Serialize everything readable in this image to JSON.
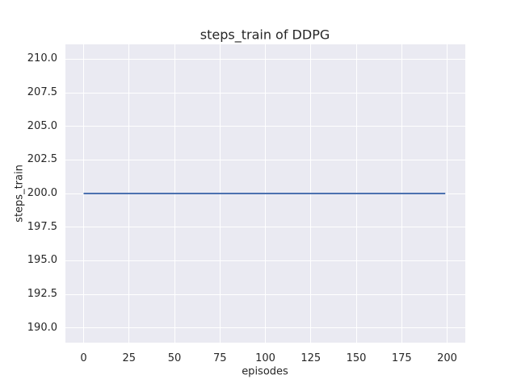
{
  "chart_data": {
    "type": "line",
    "title": "steps_train of DDPG",
    "xlabel": "episodes",
    "ylabel": "steps_train",
    "xlim": [
      -10,
      210
    ],
    "ylim": [
      188.9,
      211.1
    ],
    "x_ticks": [
      0,
      25,
      50,
      75,
      100,
      125,
      150,
      175,
      200
    ],
    "x_tick_labels": [
      "0",
      "25",
      "50",
      "75",
      "100",
      "125",
      "150",
      "175",
      "200"
    ],
    "y_ticks": [
      190.0,
      192.5,
      195.0,
      197.5,
      200.0,
      202.5,
      205.0,
      207.5,
      210.0
    ],
    "y_tick_labels": [
      "190.0",
      "192.5",
      "195.0",
      "197.5",
      "200.0",
      "202.5",
      "205.0",
      "207.5",
      "210.0"
    ],
    "grid": true,
    "legend": false,
    "series": [
      {
        "name": "steps_train",
        "color": "#4c72b0",
        "x": [
          0,
          199
        ],
        "y": [
          200,
          200
        ]
      }
    ],
    "colors": {
      "figure_background": "#ffffff",
      "axes_background": "#eaeaf2",
      "grid": "#ffffff",
      "text": "#262626",
      "line": "#4c72b0"
    }
  }
}
